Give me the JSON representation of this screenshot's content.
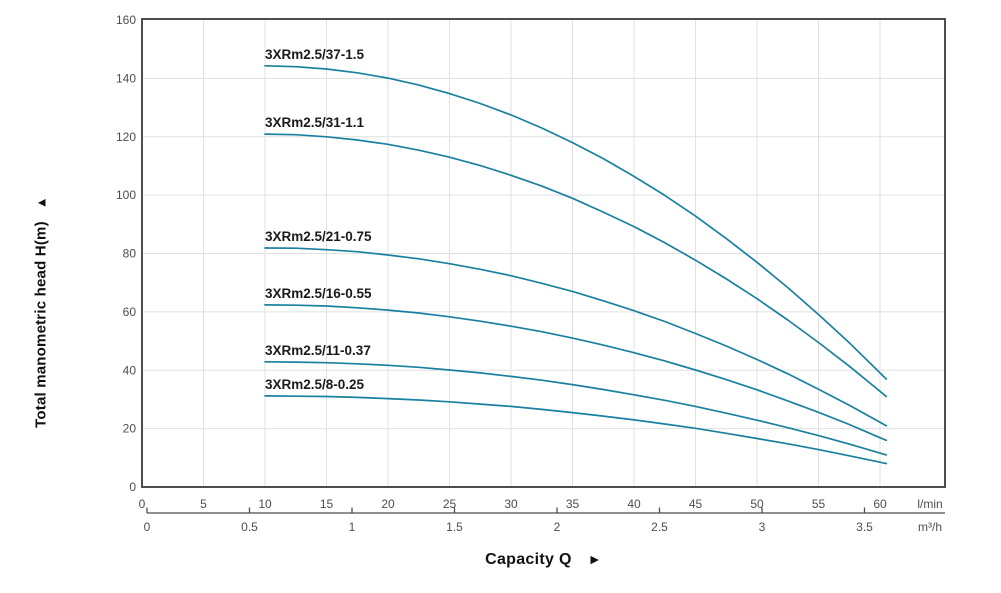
{
  "labels": {
    "y_axis_title": "Total manometric head H(m)",
    "up_arrow": "▲",
    "x_axis_title": "Capacity Q",
    "right_arrow": "►",
    "x_unit_primary": "l/min",
    "x_unit_secondary": "m³/h"
  },
  "colors": {
    "curve": "#1a80a0",
    "grid": "#e0e0e0",
    "frame": "#4d4d4d",
    "tick_text": "#4d4d4d",
    "curve_label_text": "#1a1a1a"
  },
  "chart_data": {
    "type": "line",
    "title": "",
    "xlabel": "Capacity Q",
    "ylabel": "Total manometric head H(m)",
    "grid": true,
    "legend_position": "inline-curve-labels",
    "x_axis": {
      "primary_unit": "l/min",
      "secondary_unit": "m³/h",
      "ticks_lmin": [
        0,
        5,
        10,
        15,
        20,
        25,
        30,
        35,
        40,
        45,
        50,
        55,
        60
      ],
      "ticks_m3h": [
        0,
        0.5,
        1,
        1.5,
        2,
        2.5,
        3,
        3.5
      ],
      "range_lmin": [
        0,
        65.3
      ]
    },
    "y_axis": {
      "ticks": [
        0,
        20,
        40,
        60,
        80,
        100,
        120,
        140,
        160
      ],
      "range": [
        0,
        160
      ]
    },
    "x_lmin": [
      10,
      12.5,
      15,
      17.5,
      20,
      22.5,
      25,
      27.5,
      30,
      32.5,
      35,
      37.5,
      40,
      42.5,
      45,
      47.5,
      50,
      52.5,
      55,
      57.5,
      60,
      60.5
    ],
    "series": [
      {
        "name": "3XRm2.5/37-1.5",
        "values": [
          144.3,
          144.0,
          143.2,
          141.9,
          140.1,
          137.7,
          134.8,
          131.4,
          127.5,
          123.0,
          118.0,
          112.5,
          106.4,
          99.9,
          92.8,
          85.1,
          77.0,
          68.3,
          59.1,
          49.4,
          39.1,
          37.0
        ]
      },
      {
        "name": "3XRm2.5/31-1.1",
        "values": [
          120.9,
          120.7,
          120.0,
          118.9,
          117.4,
          115.4,
          113.0,
          110.1,
          106.8,
          103.1,
          98.9,
          94.2,
          89.2,
          83.7,
          77.7,
          71.3,
          64.5,
          57.2,
          49.5,
          41.4,
          32.8,
          31.0
        ]
      },
      {
        "name": "3XRm2.5/21-0.75",
        "values": [
          81.9,
          81.8,
          81.3,
          80.6,
          79.5,
          78.2,
          76.5,
          74.6,
          72.4,
          69.8,
          67.0,
          63.8,
          60.4,
          56.7,
          52.6,
          48.3,
          43.7,
          38.8,
          33.5,
          28.0,
          22.2,
          21.0
        ]
      },
      {
        "name": "3XRm2.5/16-0.55",
        "values": [
          62.4,
          62.3,
          62.0,
          61.4,
          60.6,
          59.6,
          58.3,
          56.8,
          55.1,
          53.2,
          51.0,
          48.6,
          46.0,
          43.2,
          40.1,
          36.8,
          33.3,
          29.5,
          25.6,
          21.4,
          16.9,
          16.0
        ]
      },
      {
        "name": "3XRm2.5/11-0.37",
        "values": [
          42.9,
          42.8,
          42.6,
          42.2,
          41.7,
          41.0,
          40.1,
          39.1,
          37.9,
          36.6,
          35.1,
          33.4,
          31.6,
          29.7,
          27.6,
          25.3,
          22.9,
          20.3,
          17.6,
          14.7,
          11.6,
          11.0
        ]
      },
      {
        "name": "3XRm2.5/8-0.25",
        "values": [
          31.2,
          31.1,
          31.0,
          30.7,
          30.3,
          29.8,
          29.2,
          28.4,
          27.6,
          26.6,
          25.5,
          24.3,
          23.0,
          21.6,
          20.1,
          18.4,
          16.6,
          14.8,
          12.8,
          10.7,
          8.5,
          8.0
        ]
      }
    ]
  }
}
